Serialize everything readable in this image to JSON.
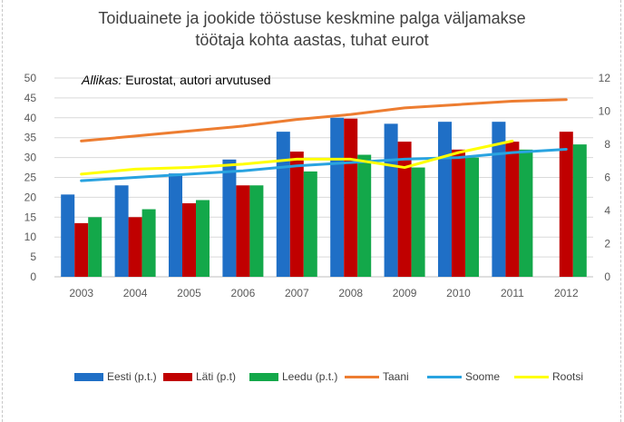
{
  "chart_data": {
    "type": "bar",
    "title_lines": [
      "Toiduainete ja jookide tööstuse keskmine palga väljamakse",
      "töötaja kohta aastas, tuhat eurot"
    ],
    "source_label": "Allikas:",
    "source_text": " Eurostat, autori arvutused",
    "categories": [
      "2003",
      "2004",
      "2005",
      "2006",
      "2007",
      "2008",
      "2009",
      "2010",
      "2011",
      "2012"
    ],
    "y_left": {
      "min": 0,
      "max": 50,
      "step": 5,
      "ticks": [
        "0",
        "5",
        "10",
        "15",
        "20",
        "25",
        "30",
        "35",
        "40",
        "45",
        "50"
      ]
    },
    "y_right": {
      "min": 0,
      "max": 12,
      "step": 2,
      "ticks": [
        "0",
        "2",
        "4",
        "6",
        "8",
        "10",
        "12"
      ]
    },
    "grid": true,
    "legend_position": "bottom",
    "bar_series": [
      {
        "name": "Eesti (p.t.)",
        "color": "#1f6fc6",
        "values": [
          20.7,
          23.0,
          26.0,
          29.5,
          36.5,
          40.0,
          38.5,
          39.0,
          39.0,
          null
        ]
      },
      {
        "name": "Läti (p.t)",
        "color": "#c00000",
        "values": [
          13.5,
          15.0,
          18.5,
          23.0,
          31.5,
          39.8,
          34.0,
          32.0,
          34.0,
          36.5
        ]
      },
      {
        "name": "Leedu (p.t.)",
        "color": "#13a84a",
        "values": [
          15.0,
          17.0,
          19.3,
          23.0,
          26.5,
          30.7,
          27.5,
          30.0,
          32.0,
          33.3
        ]
      }
    ],
    "line_series": [
      {
        "name": "Taani",
        "color": "#ed7d31",
        "axis": "right",
        "values": [
          8.2,
          8.5,
          8.8,
          9.1,
          9.5,
          9.8,
          10.2,
          10.4,
          10.6,
          10.7
        ]
      },
      {
        "name": "Soome",
        "color": "#29a3e0",
        "axis": "right",
        "values": [
          5.8,
          6.0,
          6.2,
          6.4,
          6.7,
          6.9,
          7.1,
          7.2,
          7.5,
          7.7
        ]
      },
      {
        "name": "Rootsi",
        "color": "#ffff00",
        "axis": "right",
        "values": [
          6.2,
          6.5,
          6.6,
          6.8,
          7.1,
          7.1,
          6.6,
          7.5,
          8.2,
          null
        ]
      }
    ]
  }
}
